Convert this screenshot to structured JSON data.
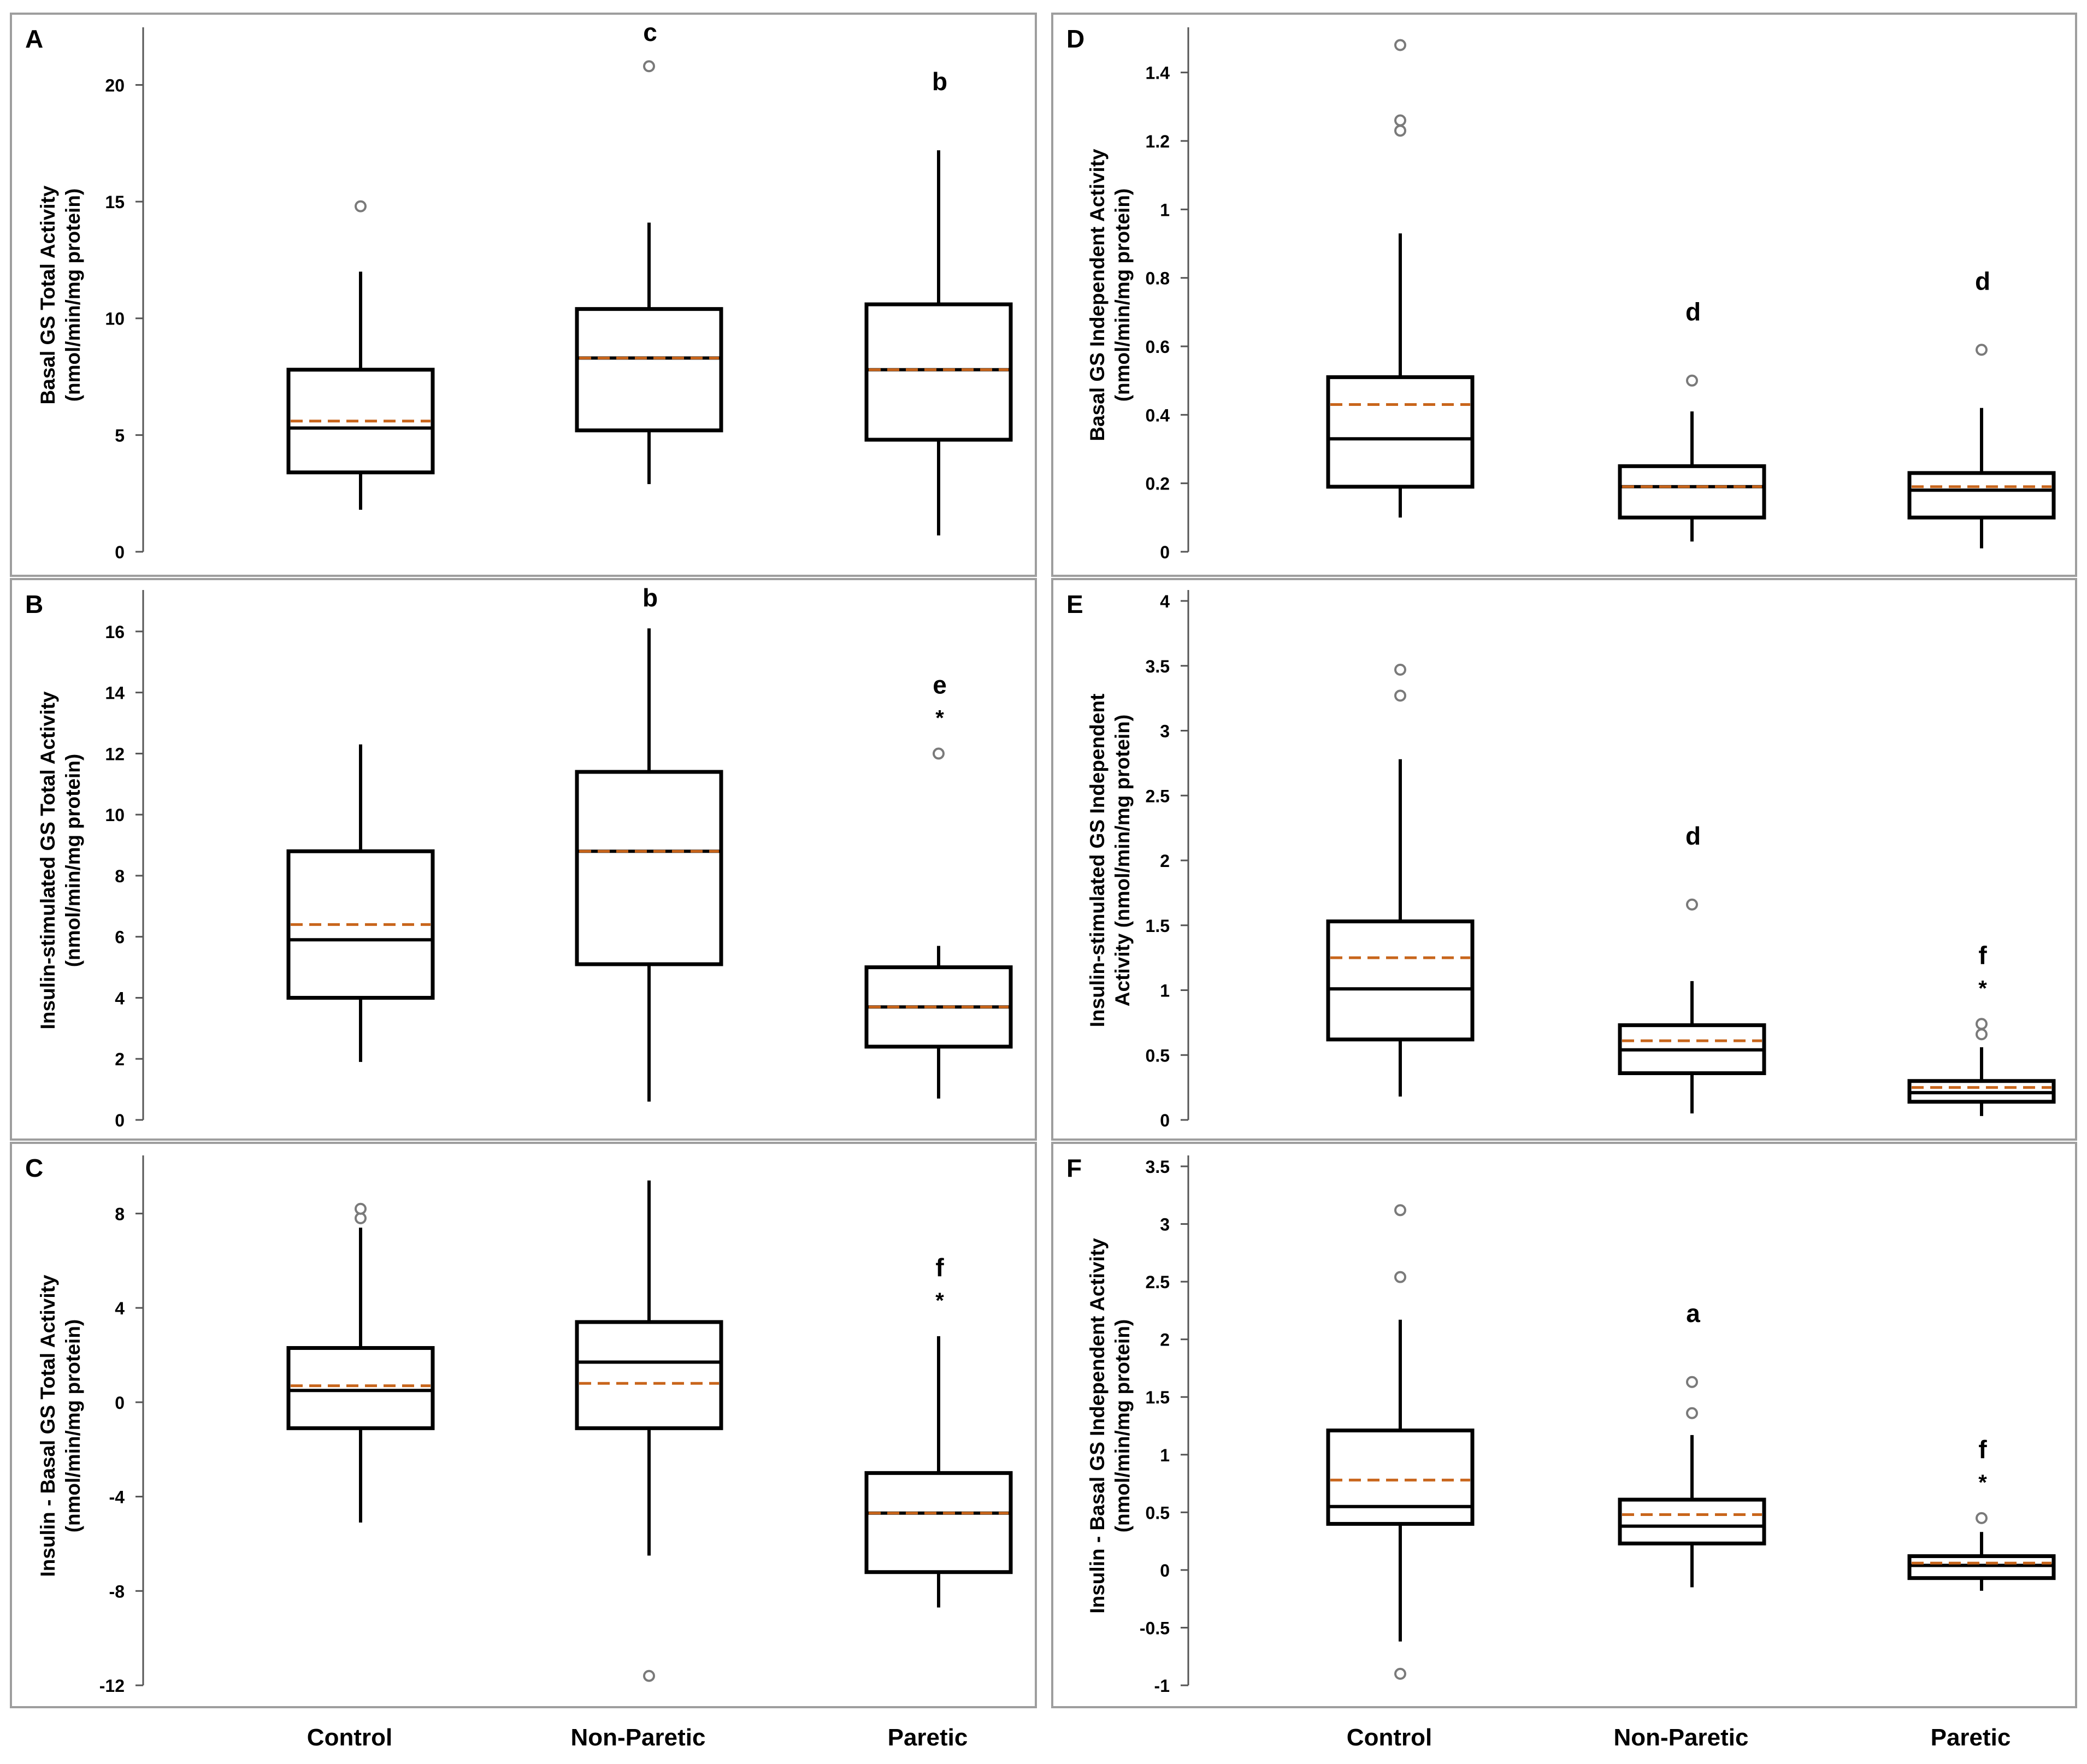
{
  "groups": [
    "Control",
    "Non-Paretic",
    "Paretic"
  ],
  "colors": {
    "box": "#000000",
    "mean_line": "#c8651b",
    "outlier": "#7a7a7a",
    "panel_border": "#9e9e9e"
  },
  "chart_data": [
    {
      "type": "box",
      "panel_label": "A",
      "ylabel_lines": [
        "Basal GS Total Activity",
        "(nmol/min/mg protein)"
      ],
      "ylim": [
        0,
        22
      ],
      "yticks": [
        0,
        5,
        10,
        15,
        20
      ],
      "yticks_labels": [
        "0",
        "5",
        "10",
        "15",
        "20"
      ],
      "groups": [
        {
          "name": "Control",
          "whisker_low": 1.8,
          "q1": 3.4,
          "median": 5.3,
          "q3": 7.8,
          "whisker_high": 12.0,
          "mean": 5.6,
          "outliers": [
            14.8
          ],
          "letter": "",
          "star": false
        },
        {
          "name": "Non-Paretic",
          "whisker_low": 2.9,
          "q1": 5.2,
          "median": 8.3,
          "q3": 10.4,
          "whisker_high": 14.1,
          "mean": 8.3,
          "outliers": [
            20.8
          ],
          "letter": "c",
          "star": false
        },
        {
          "name": "Paretic",
          "whisker_low": 0.7,
          "q1": 4.8,
          "median": 7.8,
          "q3": 10.6,
          "whisker_high": 17.2,
          "mean": 7.8,
          "outliers": [],
          "letter": "b",
          "star": false
        }
      ]
    },
    {
      "type": "box",
      "panel_label": "B",
      "ylabel_lines": [
        "Insulin-stimulated GS Total Activity",
        "(nmol/min/mg protein)"
      ],
      "ylim": [
        0,
        17
      ],
      "yticks": [
        0,
        2,
        4,
        6,
        8,
        10,
        12,
        14,
        16
      ],
      "yticks_labels": [
        "0",
        "2",
        "4",
        "6",
        "8",
        "10",
        "12",
        "14",
        "16"
      ],
      "groups": [
        {
          "name": "Control",
          "whisker_low": 1.9,
          "q1": 4.0,
          "median": 5.9,
          "q3": 8.8,
          "whisker_high": 12.3,
          "mean": 6.4,
          "outliers": [],
          "letter": "",
          "star": false
        },
        {
          "name": "Non-Paretic",
          "whisker_low": 0.6,
          "q1": 5.1,
          "median": 8.8,
          "q3": 11.4,
          "whisker_high": 16.1,
          "mean": 8.8,
          "outliers": [],
          "letter": "b",
          "star": false
        },
        {
          "name": "Paretic",
          "whisker_low": 0.7,
          "q1": 2.4,
          "median": 3.7,
          "q3": 5.0,
          "whisker_high": 5.7,
          "mean": 3.7,
          "outliers": [
            12.0
          ],
          "letter": "e",
          "star": true
        }
      ]
    },
    {
      "type": "box",
      "panel_label": "C",
      "ylabel_lines": [
        "Insulin - Basal GS Total Activity",
        "(nmol/min/mg protein)"
      ],
      "ylim": [
        -12,
        10
      ],
      "yticks": [
        -12,
        -8,
        -4,
        0,
        4,
        8
      ],
      "yticks_labels": [
        "-12",
        "-8",
        "-4",
        "0",
        "4",
        "8"
      ],
      "groups": [
        {
          "name": "Control",
          "whisker_low": -5.1,
          "q1": -1.1,
          "median": 0.5,
          "q3": 2.3,
          "whisker_high": 7.4,
          "mean": 0.7,
          "outliers": [
            7.8,
            8.2
          ],
          "letter": "",
          "star": false
        },
        {
          "name": "Non-Paretic",
          "whisker_low": -6.5,
          "q1": -1.1,
          "median": 1.7,
          "q3": 3.4,
          "whisker_high": 9.4,
          "mean": 0.8,
          "outliers": [
            -11.6
          ],
          "letter": "",
          "star": false
        },
        {
          "name": "Paretic",
          "whisker_low": -8.7,
          "q1": -7.2,
          "median": -4.7,
          "q3": -3.0,
          "whisker_high": 2.8,
          "mean": -4.7,
          "outliers": [],
          "letter": "f",
          "star": true
        }
      ]
    },
    {
      "type": "box",
      "panel_label": "D",
      "ylabel_lines": [
        "Basal GS Independent Activity",
        "(nmol/min/mg protein)"
      ],
      "ylim": [
        0,
        1.5
      ],
      "yticks": [
        0,
        0.2,
        0.4,
        0.6,
        0.8,
        1,
        1.2,
        1.4
      ],
      "yticks_labels": [
        "0",
        "0.2",
        "0.4",
        "0.6",
        "0.8",
        "1",
        "1.2",
        "1.4"
      ],
      "groups": [
        {
          "name": "Control",
          "whisker_low": 0.1,
          "q1": 0.19,
          "median": 0.33,
          "q3": 0.51,
          "whisker_high": 0.93,
          "mean": 0.43,
          "outliers": [
            1.23,
            1.26,
            1.48
          ],
          "letter": "",
          "star": false
        },
        {
          "name": "Non-Paretic",
          "whisker_low": 0.03,
          "q1": 0.1,
          "median": 0.19,
          "q3": 0.25,
          "whisker_high": 0.41,
          "mean": 0.19,
          "outliers": [
            0.5
          ],
          "letter": "d",
          "star": false
        },
        {
          "name": "Paretic",
          "whisker_low": 0.01,
          "q1": 0.1,
          "median": 0.18,
          "q3": 0.23,
          "whisker_high": 0.42,
          "mean": 0.19,
          "outliers": [
            0.59
          ],
          "letter": "d",
          "star": false
        }
      ]
    },
    {
      "type": "box",
      "panel_label": "E",
      "ylabel_lines": [
        "Insulin-stimulated GS Independent",
        "Activity (nmol/min/mg protein)"
      ],
      "ylim": [
        0,
        4
      ],
      "yticks": [
        0,
        0.5,
        1,
        1.5,
        2,
        2.5,
        3,
        3.5,
        4
      ],
      "yticks_labels": [
        "0",
        "0.5",
        "1",
        "1.5",
        "2",
        "2.5",
        "3",
        "3.5",
        "4"
      ],
      "groups": [
        {
          "name": "Control",
          "whisker_low": 0.18,
          "q1": 0.62,
          "median": 1.01,
          "q3": 1.53,
          "whisker_high": 2.78,
          "mean": 1.25,
          "outliers": [
            3.27,
            3.47
          ],
          "letter": "",
          "star": false
        },
        {
          "name": "Non-Paretic",
          "whisker_low": 0.05,
          "q1": 0.36,
          "median": 0.54,
          "q3": 0.73,
          "whisker_high": 1.07,
          "mean": 0.61,
          "outliers": [
            1.66
          ],
          "letter": "d",
          "star": false
        },
        {
          "name": "Paretic",
          "whisker_low": 0.03,
          "q1": 0.14,
          "median": 0.21,
          "q3": 0.3,
          "whisker_high": 0.56,
          "mean": 0.25,
          "outliers": [
            0.66,
            0.74
          ],
          "letter": "f",
          "star": true
        }
      ]
    },
    {
      "type": "box",
      "panel_label": "F",
      "ylabel_lines": [
        "Insulin - Basal GS Independent Activity",
        "(nmol/min/mg protein)"
      ],
      "ylim": [
        -1,
        3.5
      ],
      "yticks": [
        -1,
        -0.5,
        0,
        0.5,
        1,
        1.5,
        2,
        2.5,
        3,
        3.5
      ],
      "yticks_labels": [
        "-1",
        "-0.5",
        "0",
        "0.5",
        "1",
        "1.5",
        "2",
        "2.5",
        "3",
        "3.5"
      ],
      "groups": [
        {
          "name": "Control",
          "whisker_low": -0.62,
          "q1": 0.4,
          "median": 0.55,
          "q3": 1.21,
          "whisker_high": 2.17,
          "mean": 0.78,
          "outliers": [
            -0.9,
            2.54,
            3.12
          ],
          "letter": "",
          "star": false
        },
        {
          "name": "Non-Paretic",
          "whisker_low": -0.15,
          "q1": 0.23,
          "median": 0.38,
          "q3": 0.61,
          "whisker_high": 1.17,
          "mean": 0.48,
          "outliers": [
            1.36,
            1.63
          ],
          "letter": "a",
          "star": false
        },
        {
          "name": "Paretic",
          "whisker_low": -0.18,
          "q1": -0.07,
          "median": 0.04,
          "q3": 0.12,
          "whisker_high": 0.33,
          "mean": 0.06,
          "outliers": [
            0.45
          ],
          "letter": "f",
          "star": true
        }
      ]
    }
  ]
}
